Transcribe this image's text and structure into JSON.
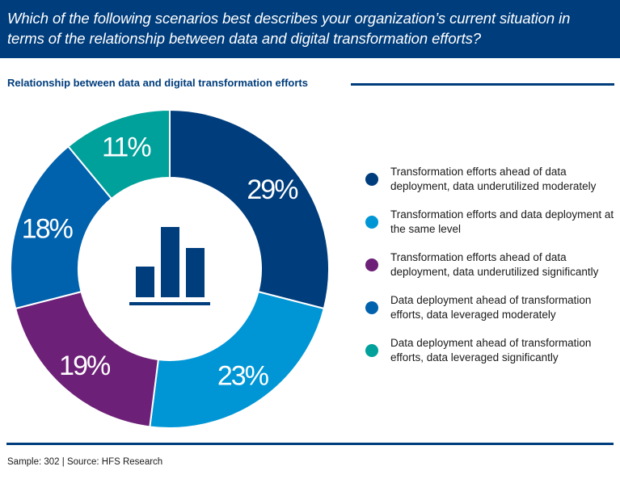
{
  "question": "Which of the following scenarios best describes your organization’s current situation in terms of the relationship between data and digital transformation efforts?",
  "footer": "Sample: 302 | Source: HFS Research",
  "chart_data": {
    "type": "pie",
    "title": "Relationship between data and digital transformation efforts",
    "center_icon": "bar-chart-icon",
    "slices": [
      {
        "label": "Transformation efforts ahead of data deployment, data underutilized moderately",
        "value": 29,
        "display": "29%",
        "color": "#003d7c"
      },
      {
        "label": "Transformation efforts and data deployment at the same level",
        "value": 23,
        "display": "23%",
        "color": "#0096d6"
      },
      {
        "label": "Transformation efforts ahead of data deployment, data underutilized significantly",
        "value": 19,
        "display": "19%",
        "color": "#6d2077"
      },
      {
        "label": "Data deployment ahead of transformation efforts, data leveraged moderately",
        "value": 18,
        "display": "18%",
        "color": "#0061ad"
      },
      {
        "label": "Data deployment ahead of transformation efforts, data leveraged significantly",
        "value": 11,
        "display": "11%",
        "color": "#00a19a"
      }
    ]
  }
}
